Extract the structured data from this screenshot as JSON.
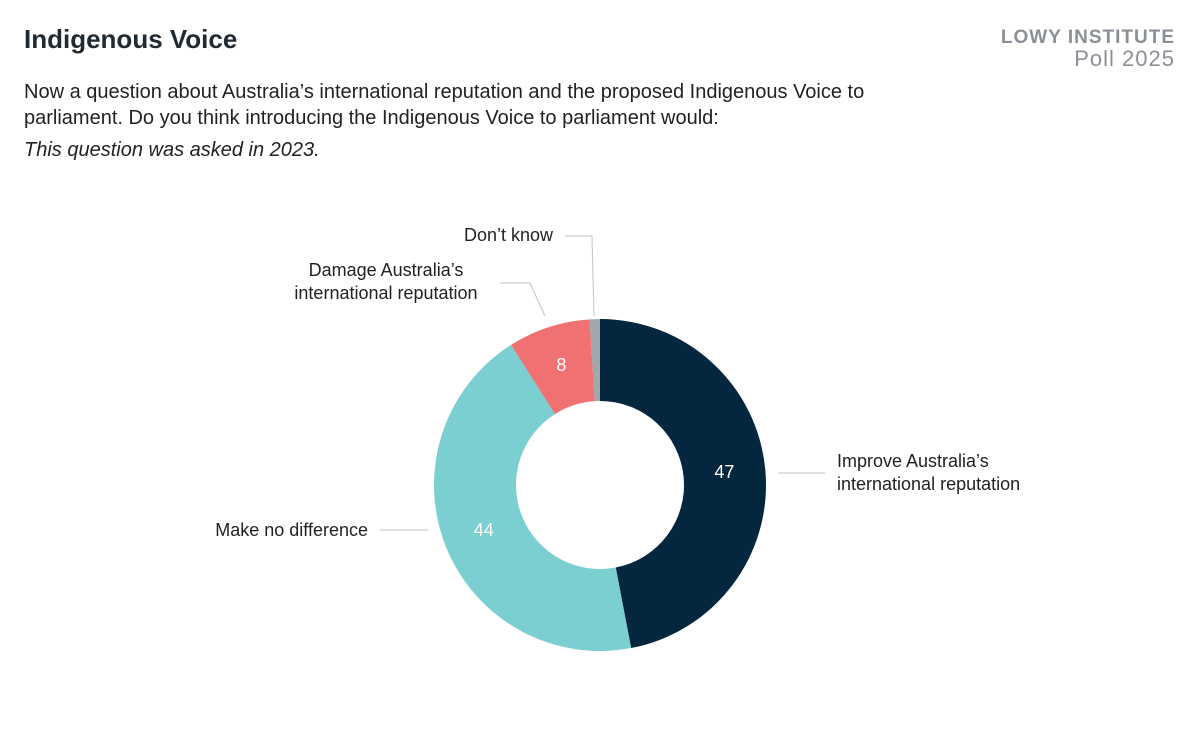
{
  "header": {
    "title": "Indigenous Voice",
    "brand": "LOWY INSTITUTE",
    "brand_sub": "Poll 2025"
  },
  "chart_data": {
    "type": "donut",
    "subtitle": "Now a question about Australia’s international reputation and the proposed Indigenous Voice to parliament. Do you think introducing the Indigenous Voice to parliament would:",
    "note": "This question was asked in 2023.",
    "categories": [
      "Improve Australia’s international reputation",
      "Make no difference",
      "Damage Australia’s international reputation",
      "Don’t know"
    ],
    "values": [
      47,
      44,
      8,
      1
    ],
    "colors": [
      "#04263e",
      "#7bcfd1",
      "#f07172",
      "#a4a7aa"
    ]
  }
}
